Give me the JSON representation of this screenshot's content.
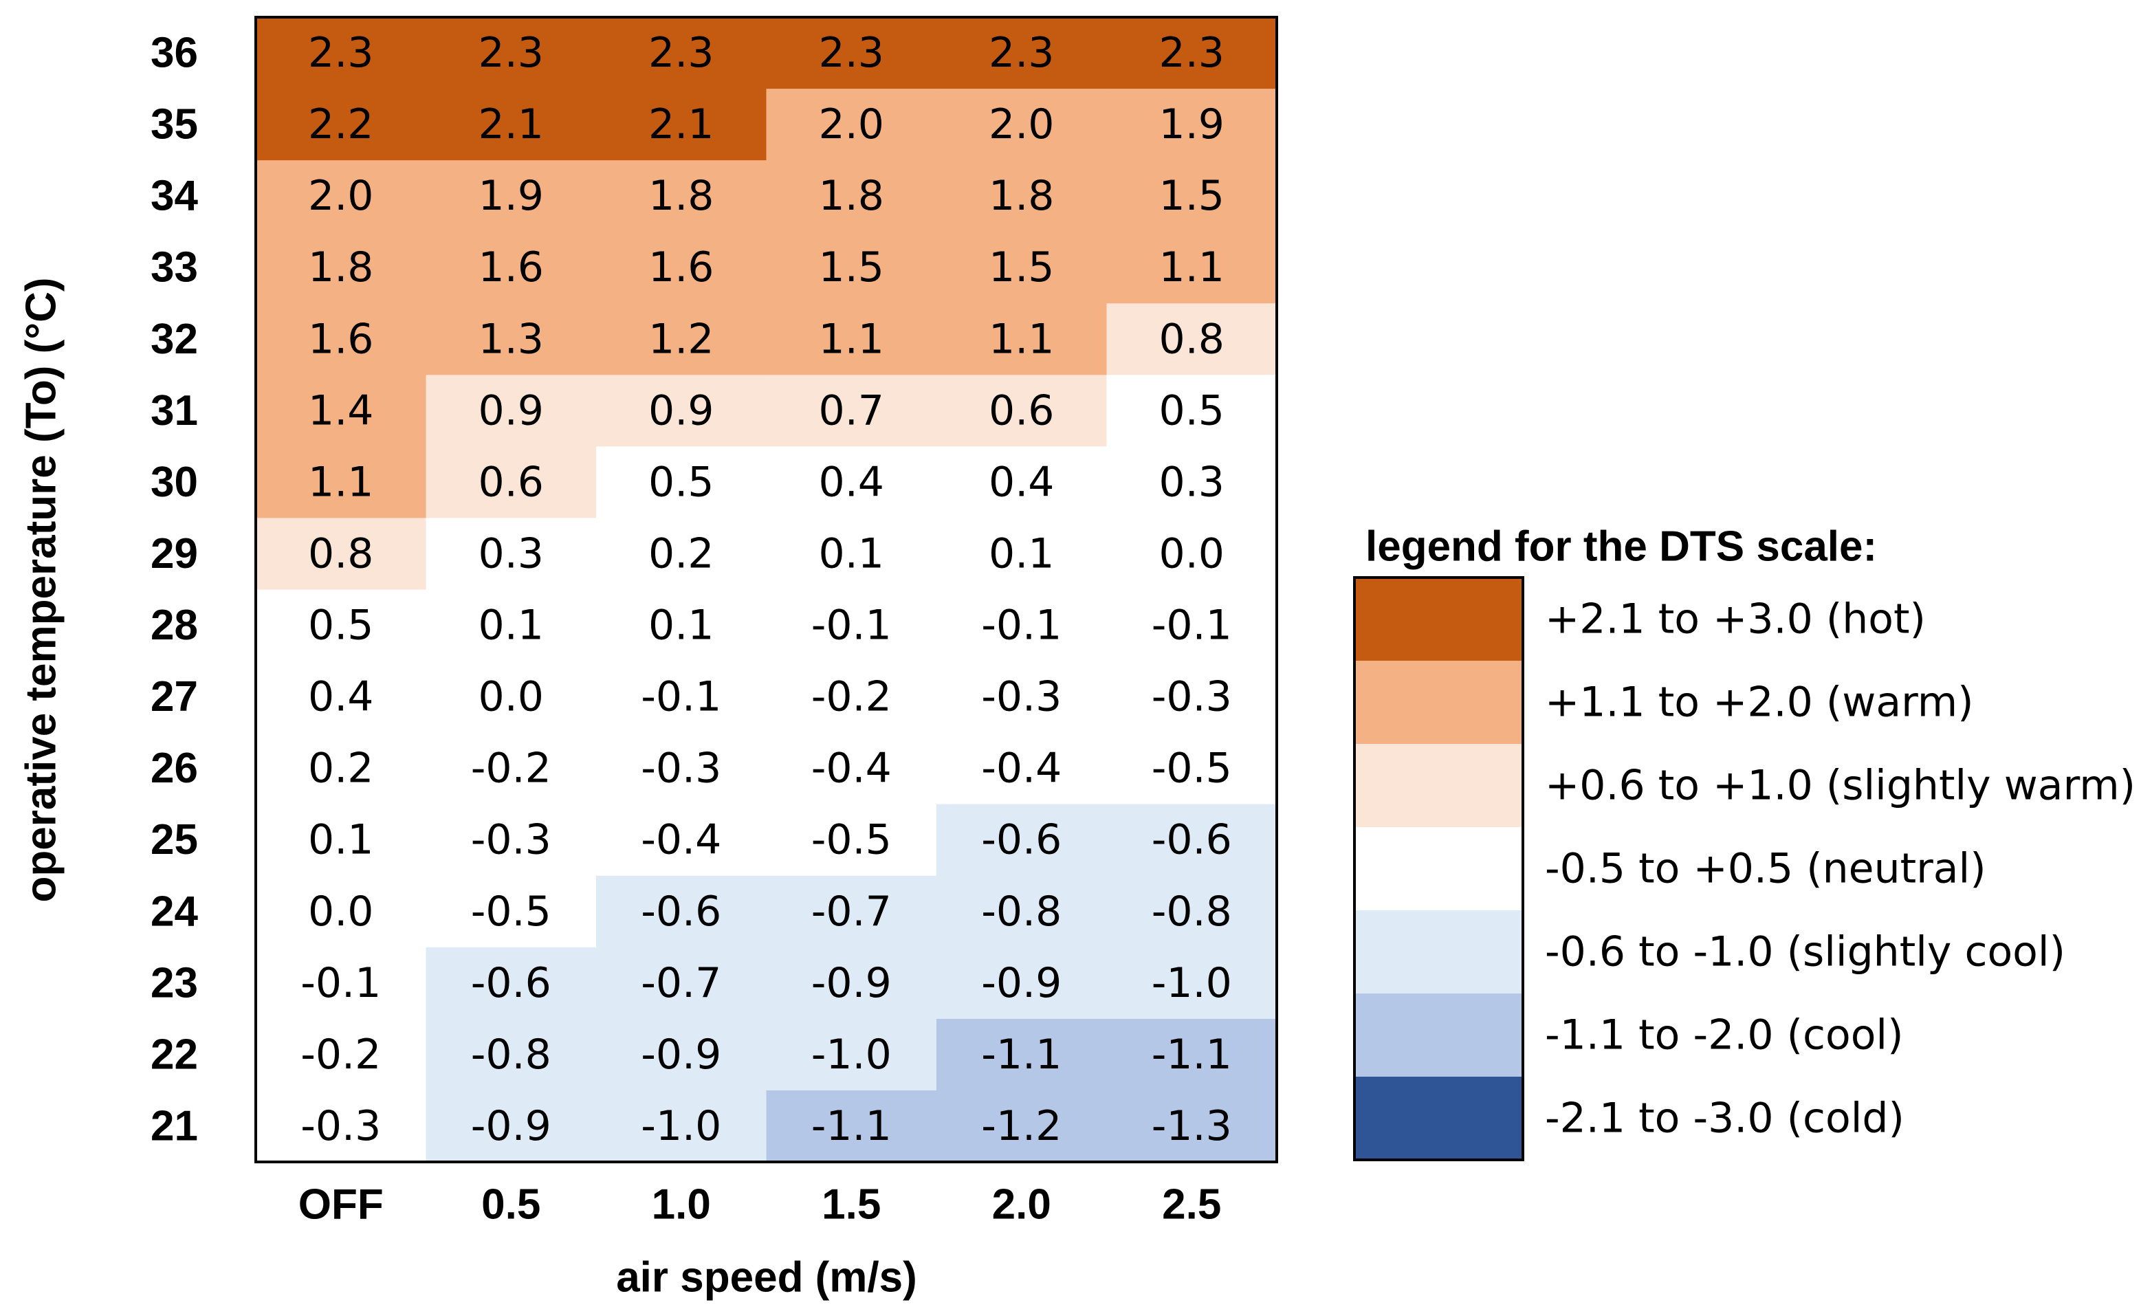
{
  "chart_data": {
    "type": "heatmap",
    "xlabel": "air speed (m/s)",
    "ylabel": "operative temperature (To) (°C)",
    "x_categories": [
      "OFF",
      "0.5",
      "1.0",
      "1.5",
      "2.0",
      "2.5"
    ],
    "y_categories": [
      "36",
      "35",
      "34",
      "33",
      "32",
      "31",
      "30",
      "29",
      "28",
      "27",
      "26",
      "25",
      "24",
      "23",
      "22",
      "21"
    ],
    "values": [
      [
        2.3,
        2.3,
        2.3,
        2.3,
        2.3,
        2.3
      ],
      [
        2.2,
        2.1,
        2.1,
        2.0,
        2.0,
        1.9
      ],
      [
        2.0,
        1.9,
        1.8,
        1.8,
        1.8,
        1.5
      ],
      [
        1.8,
        1.6,
        1.6,
        1.5,
        1.5,
        1.1
      ],
      [
        1.6,
        1.3,
        1.2,
        1.1,
        1.1,
        0.8
      ],
      [
        1.4,
        0.9,
        0.9,
        0.7,
        0.6,
        0.5
      ],
      [
        1.1,
        0.6,
        0.5,
        0.4,
        0.4,
        0.3
      ],
      [
        0.8,
        0.3,
        0.2,
        0.1,
        0.1,
        0.0
      ],
      [
        0.5,
        0.1,
        0.1,
        -0.1,
        -0.1,
        -0.1
      ],
      [
        0.4,
        0.0,
        -0.1,
        -0.2,
        -0.3,
        -0.3
      ],
      [
        0.2,
        -0.2,
        -0.3,
        -0.4,
        -0.4,
        -0.5
      ],
      [
        0.1,
        -0.3,
        -0.4,
        -0.5,
        -0.6,
        -0.6
      ],
      [
        0.0,
        -0.5,
        -0.6,
        -0.7,
        -0.8,
        -0.8
      ],
      [
        -0.1,
        -0.6,
        -0.7,
        -0.9,
        -0.9,
        -1.0
      ],
      [
        -0.2,
        -0.8,
        -0.9,
        -1.0,
        -1.1,
        -1.1
      ],
      [
        -0.3,
        -0.9,
        -1.0,
        -1.1,
        -1.2,
        -1.3
      ]
    ],
    "legend_title": "legend for the DTS scale:",
    "legend": [
      {
        "label": "+2.1 to +3.0 (hot)",
        "color": "#c55a11",
        "min": 2.1,
        "max": 3.0
      },
      {
        "label": "+1.1 to +2.0 (warm)",
        "color": "#f4b183",
        "min": 1.1,
        "max": 2.0
      },
      {
        "label": "+0.6 to +1.0 (slightly warm)",
        "color": "#fbe5d6",
        "min": 0.6,
        "max": 1.0
      },
      {
        "label": "-0.5 to +0.5 (neutral)",
        "color": "#ffffff",
        "min": -0.5,
        "max": 0.5
      },
      {
        "label": "-0.6 to -1.0 (slightly cool)",
        "color": "#deebf7",
        "min": -1.0,
        "max": -0.6
      },
      {
        "label": "-1.1 to -2.0 (cool)",
        "color": "#b4c7e7",
        "min": -2.0,
        "max": -1.1
      },
      {
        "label": "-2.1 to -3.0 (cold)",
        "color": "#2f5597",
        "min": -3.0,
        "max": -2.1
      }
    ]
  }
}
